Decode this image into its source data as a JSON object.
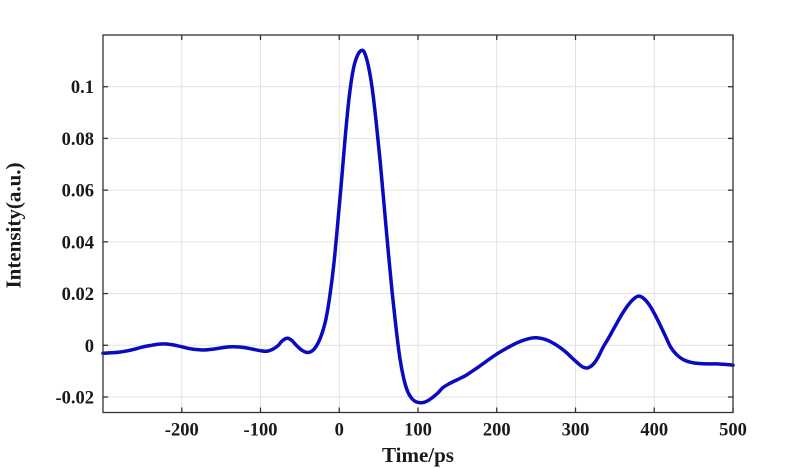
{
  "figure": {
    "background": "#ffffff",
    "axis_color": "#333333",
    "grid_color": "#e2e2e2",
    "text_color": "#1a1a1a"
  },
  "chart_data": {
    "type": "line",
    "title": "",
    "xlabel": "Time/ps",
    "ylabel": "Intensity(a.u.)",
    "xlim": [
      -300,
      500
    ],
    "ylim": [
      -0.026,
      0.12
    ],
    "grid": true,
    "legend": "none",
    "line_color": "#0a0ac0",
    "line_width": 3.5,
    "xticks": [
      -200,
      -100,
      0,
      100,
      200,
      300,
      400,
      500
    ],
    "xtick_labels": [
      "-200",
      "-100",
      "0",
      "100",
      "200",
      "300",
      "400",
      "500"
    ],
    "yticks": [
      -0.02,
      0,
      0.02,
      0.04,
      0.06,
      0.08,
      0.1
    ],
    "ytick_labels": [
      "-0.02",
      "0",
      "0.02",
      "0.04",
      "0.06",
      "0.08",
      "0.1"
    ],
    "series": [
      {
        "name": "intensity",
        "x": [
          -300,
          -290,
          -280,
          -270,
          -260,
          -250,
          -240,
          -230,
          -220,
          -210,
          -200,
          -190,
          -180,
          -170,
          -160,
          -150,
          -140,
          -130,
          -120,
          -110,
          -100,
          -92,
          -85,
          -78,
          -72,
          -66,
          -60,
          -54,
          -48,
          -42,
          -37,
          -32,
          -27,
          -22,
          -17,
          -12,
          -7,
          -2,
          3,
          8,
          13,
          18,
          23,
          28,
          32,
          37,
          42,
          47,
          52,
          57,
          62,
          67,
          72,
          77,
          82,
          87,
          92,
          97,
          102,
          107,
          112,
          118,
          125,
          132,
          140,
          150,
          160,
          170,
          180,
          190,
          200,
          210,
          220,
          230,
          240,
          248,
          256,
          264,
          272,
          280,
          288,
          296,
          304,
          310,
          316,
          322,
          328,
          335,
          342,
          350,
          358,
          366,
          373,
          380,
          387,
          394,
          401,
          408,
          415,
          421,
          428,
          435,
          442,
          450,
          460,
          470,
          480,
          490,
          500
        ],
        "y": [
          -0.0031,
          -0.0029,
          -0.0027,
          -0.0022,
          -0.0015,
          -0.0007,
          -0.0001,
          0.0004,
          0.0005,
          0.0001,
          -0.0006,
          -0.0013,
          -0.0017,
          -0.0018,
          -0.0015,
          -0.001,
          -0.0006,
          -0.0006,
          -0.0009,
          -0.0015,
          -0.0021,
          -0.0023,
          -0.0016,
          -0.0002,
          0.0018,
          0.0027,
          0.0018,
          -0.0002,
          -0.0018,
          -0.0027,
          -0.0026,
          -0.0015,
          0.0008,
          0.0045,
          0.01,
          0.019,
          0.031,
          0.047,
          0.064,
          0.082,
          0.097,
          0.107,
          0.112,
          0.114,
          0.1132,
          0.108,
          0.099,
          0.086,
          0.071,
          0.054,
          0.037,
          0.021,
          0.007,
          -0.005,
          -0.013,
          -0.018,
          -0.0205,
          -0.0218,
          -0.0222,
          -0.0221,
          -0.0215,
          -0.0203,
          -0.0185,
          -0.0163,
          -0.0148,
          -0.0133,
          -0.0118,
          -0.0098,
          -0.0077,
          -0.0055,
          -0.0034,
          -0.0016,
          0.0001,
          0.0015,
          0.0025,
          0.0029,
          0.0027,
          0.002,
          0.0008,
          -0.0008,
          -0.0027,
          -0.005,
          -0.0072,
          -0.0085,
          -0.0087,
          -0.0075,
          -0.005,
          -0.0008,
          0.0028,
          0.0072,
          0.0115,
          0.0152,
          0.0177,
          0.019,
          0.018,
          0.0155,
          0.0118,
          0.0075,
          0.003,
          -0.0008,
          -0.0035,
          -0.0052,
          -0.0062,
          -0.0068,
          -0.0071,
          -0.0072,
          -0.0072,
          -0.0074,
          -0.0077
        ]
      }
    ]
  }
}
